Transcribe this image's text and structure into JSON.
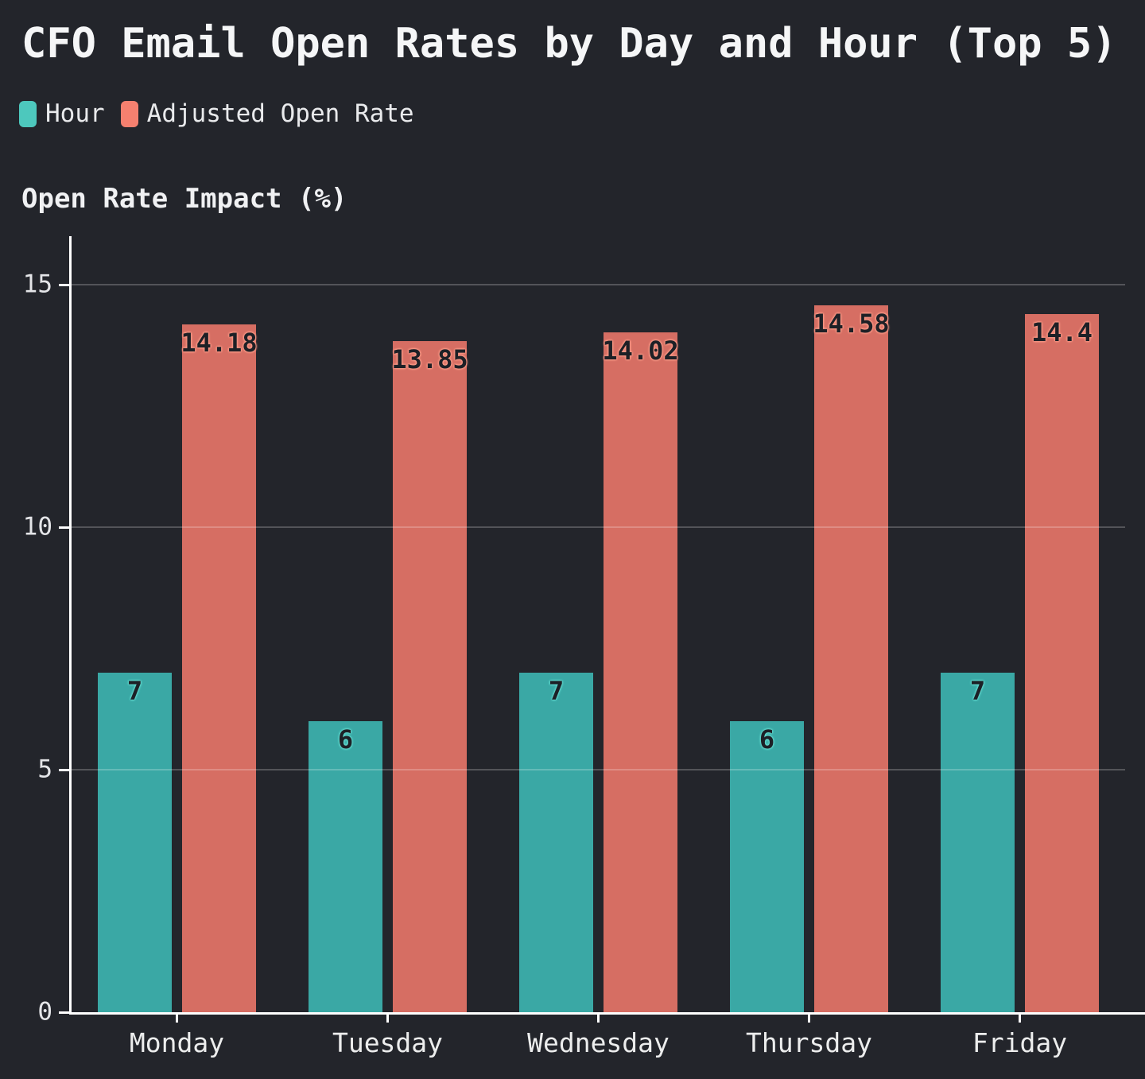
{
  "title": "CFO Email Open Rates by Day and Hour (Top 5)",
  "y_axis_title": "Open Rate Impact (%)",
  "legend": [
    {
      "label": "Hour",
      "color": "#4dc8bd"
    },
    {
      "label": "Adjusted Open Rate",
      "color": "#f5806f"
    }
  ],
  "colors": {
    "background": "#23252b",
    "axis_line": "#ffffff",
    "grid_line": "rgba(255,255,255,0.22)",
    "title_text": "#f5f6f7",
    "tick_text": "#e4e5e8"
  },
  "chart_data": {
    "type": "bar",
    "title": "CFO Email Open Rates by Day and Hour (Top 5)",
    "ylabel": "Open Rate Impact (%)",
    "categories": [
      "Monday",
      "Tuesday",
      "Wednesday",
      "Thursday",
      "Friday"
    ],
    "series": [
      {
        "name": "Hour",
        "values": [
          7,
          6,
          7,
          6,
          7
        ],
        "bar_color": "#3aa8a5",
        "legend_color": "#4dc8bd",
        "label_glow": "#62d8cd"
      },
      {
        "name": "Adjusted Open Rate",
        "values": [
          14.18,
          13.85,
          14.02,
          14.58,
          14.4
        ],
        "bar_color": "#d66e63",
        "legend_color": "#f5806f",
        "label_glow": "#ff9d8a"
      }
    ],
    "value_label_color": "#1d2026",
    "yticks": [
      0,
      5,
      10,
      15
    ],
    "ylim": [
      0,
      16
    ],
    "grid": true,
    "legend_position": "top-left"
  }
}
